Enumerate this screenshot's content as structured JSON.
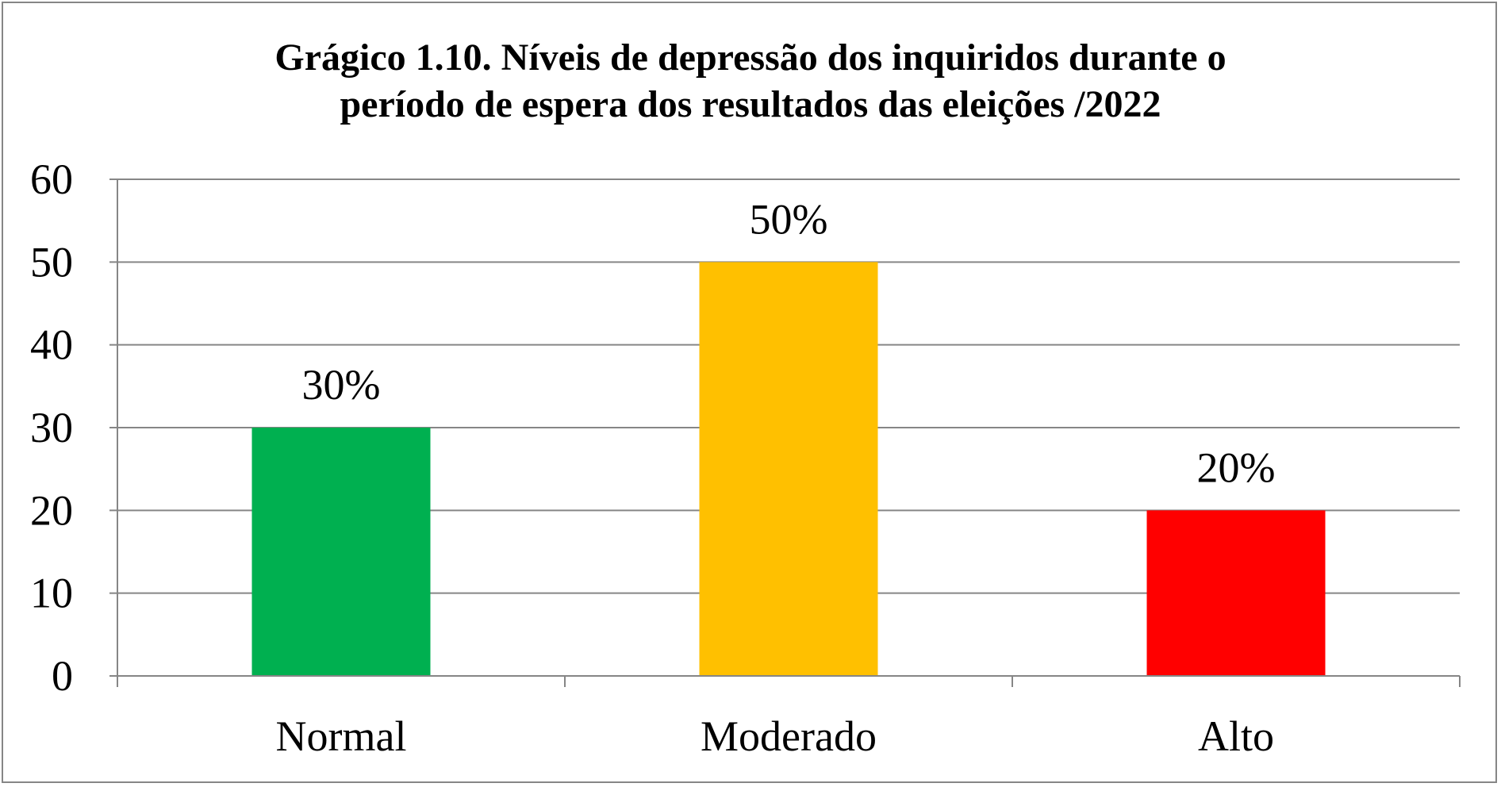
{
  "chart_data": {
    "type": "bar",
    "title_lines": [
      "Grágico 1.10. Níveis de depressão dos inquiridos durante o",
      "período de espera dos resultados das eleições /2022"
    ],
    "categories": [
      "Normal",
      "Moderado",
      "Alto"
    ],
    "values": [
      30,
      50,
      20
    ],
    "data_labels": [
      "30%",
      "50%",
      "20%"
    ],
    "colors": [
      "#00B050",
      "#FFC000",
      "#FF0000"
    ],
    "ylim": [
      0,
      60
    ],
    "yticks": [
      0,
      10,
      20,
      30,
      40,
      50,
      60
    ],
    "grid": true,
    "legend": "none",
    "xlabel": "",
    "ylabel": ""
  }
}
